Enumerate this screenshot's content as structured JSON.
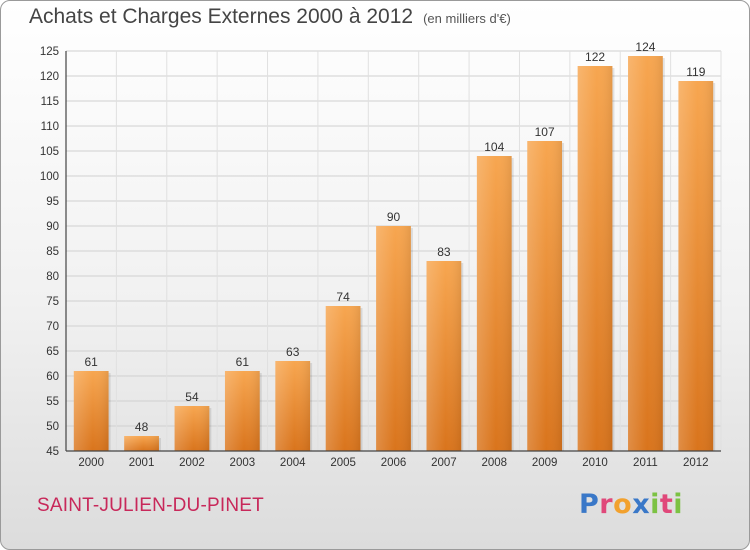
{
  "header": {
    "title": "Achats et Charges Externes 2000 à 2012",
    "unit": "(en milliers d'€)"
  },
  "footer": {
    "place": "SAINT-JULIEN-DU-PINET",
    "brand_letters": [
      "P",
      "r",
      "o",
      "x",
      "i",
      "t",
      "i"
    ],
    "brand_colors": [
      "#3a78c8",
      "#e0487a",
      "#f2a12e",
      "#3a78c8",
      "#7cc243",
      "#e0487a",
      "#7cc243"
    ]
  },
  "chart_data": {
    "type": "bar",
    "title": "Achats et Charges Externes 2000 à 2012",
    "subtitle": "(en milliers d'€)",
    "categories": [
      "2000",
      "2001",
      "2002",
      "2003",
      "2004",
      "2005",
      "2006",
      "2007",
      "2008",
      "2009",
      "2010",
      "2011",
      "2012"
    ],
    "values": [
      61,
      48,
      54,
      61,
      63,
      74,
      90,
      83,
      104,
      107,
      122,
      124,
      119
    ],
    "ylim": [
      45,
      125
    ],
    "yticks": [
      45,
      50,
      55,
      60,
      65,
      70,
      75,
      80,
      85,
      90,
      95,
      100,
      105,
      110,
      115,
      120,
      125
    ],
    "grid": true,
    "bar_color": "#f09a3e"
  }
}
